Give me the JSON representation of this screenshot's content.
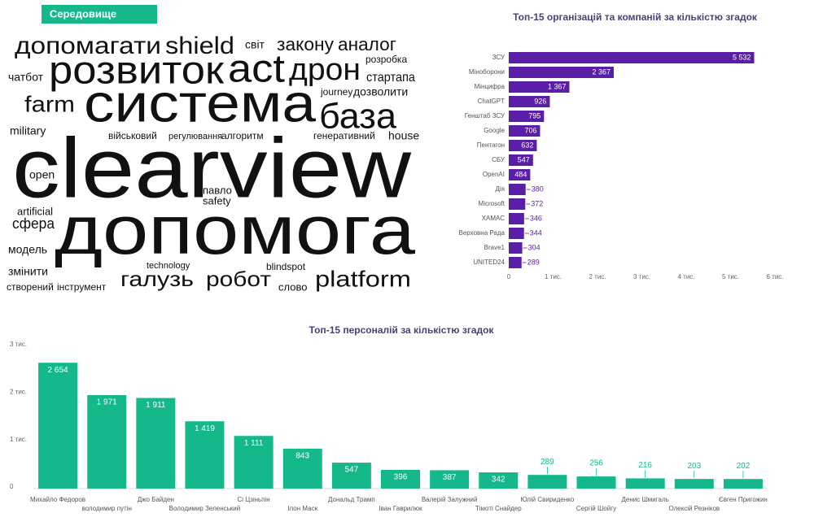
{
  "header": {
    "tag": "Середовище"
  },
  "word_cloud": {
    "words": [
      "допомагати",
      "shield",
      "світ",
      "закону",
      "аналог",
      "розвиток",
      "act",
      "дрон",
      "розробка",
      "чатбот",
      "стартапа",
      "journey",
      "дозволити",
      "farm",
      "система",
      "база",
      "military",
      "військовий",
      "регулювання",
      "алгоритм",
      "генеративний",
      "house",
      "clearview",
      "open",
      "павло",
      "safety",
      "artificial",
      "сфера",
      "допомога",
      "модель",
      "змінити",
      "technology",
      "blindspot",
      "створений",
      "інструмент",
      "галузь",
      "робот",
      "слово",
      "platform"
    ]
  },
  "chart_data": [
    {
      "type": "hbar",
      "title": "Топ-15 організацій та компаній за кількістю згадок",
      "categories": [
        "ЗСУ",
        "Міноборони",
        "Мінцифра",
        "ChatGPT",
        "Генштаб ЗСУ",
        "Google",
        "Пентагон",
        "СБУ",
        "OpenAI",
        "Дія",
        "Microsoft",
        "ХАМАС",
        "Верховна Рада",
        "Brave1",
        "UNITED24"
      ],
      "values": [
        5532,
        2367,
        1367,
        926,
        795,
        706,
        632,
        547,
        484,
        380,
        372,
        346,
        344,
        304,
        289
      ],
      "value_labels": [
        "5 532",
        "2 367",
        "1 367",
        "926",
        "795",
        "706",
        "632",
        "547",
        "484",
        "380",
        "372",
        "346",
        "344",
        "304",
        "289"
      ],
      "color": "#5a1fa6",
      "xlim": [
        0,
        6000
      ],
      "xticks": [
        0,
        {
          "value": 1000,
          "label": "1 тис."
        },
        {
          "value": 2000,
          "label": "2 тис."
        },
        {
          "value": 3000,
          "label": "3 тис."
        },
        {
          "value": 4000,
          "label": "4 тис."
        },
        {
          "value": 5000,
          "label": "5 тис."
        },
        {
          "value": 6000,
          "label": "6 тис."
        }
      ]
    },
    {
      "type": "bar",
      "title": "Топ-15 персоналій за кількістю згадок",
      "categories": [
        "Михайло Федоров",
        "володимир путін",
        "Джо Байден",
        "Володимир Зеленський",
        "Сі Цзіньпін",
        "Ілон Маск",
        "Дональд Трамп",
        "Іван Гаврилюк",
        "Валерій Залужний",
        "Тімоті Снайдер",
        "Юлій Свириденко",
        "Сергій Шойгу",
        "Денис Шмигаль",
        "Олексій Резніков",
        "Євген Пригожин"
      ],
      "values": [
        2654,
        1971,
        1911,
        1419,
        1111,
        843,
        547,
        396,
        387,
        342,
        289,
        256,
        216,
        203,
        202
      ],
      "value_labels": [
        "2 654",
        "1 971",
        "1 911",
        "1 419",
        "1 111",
        "843",
        "547",
        "396",
        "387",
        "342",
        "289",
        "256",
        "216",
        "203",
        "202"
      ],
      "color": "#14b88b",
      "ylim": [
        0,
        3000
      ],
      "yticks": [
        0,
        {
          "value": 1000,
          "label": "1 тис."
        },
        {
          "value": 2000,
          "label": "2 тис."
        },
        {
          "value": 3000,
          "label": "3 тис."
        }
      ]
    }
  ]
}
